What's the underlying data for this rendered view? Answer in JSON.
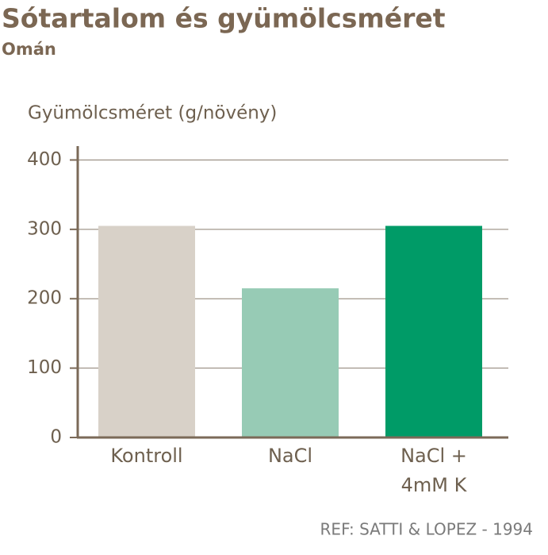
{
  "chart_data": {
    "type": "bar",
    "title": "Sótartalom és gyümölcsméret",
    "subtitle": "Omán",
    "y_label": "Gyümölcsméret (g/növény)",
    "categories": [
      "Kontroll",
      "NaCl",
      "NaCl +\n4mM K"
    ],
    "values": [
      305,
      215,
      305
    ],
    "colors": [
      "#d8d1c8",
      "#97cbb5",
      "#009b67"
    ],
    "ylim": [
      0,
      420
    ],
    "yticks": [
      0,
      100,
      200,
      300,
      400
    ],
    "grid": true,
    "source": "REF: SATTI & LOPEZ - 1994"
  }
}
